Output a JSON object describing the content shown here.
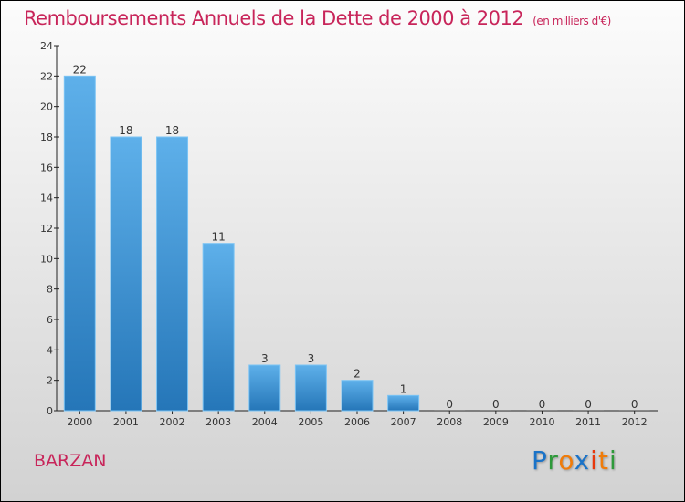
{
  "chart_data": {
    "type": "bar",
    "title": "Remboursements Annuels de la Dette de 2000 à 2012",
    "subtitle": "(en milliers d'€)",
    "categories": [
      "2000",
      "2001",
      "2002",
      "2003",
      "2004",
      "2005",
      "2006",
      "2007",
      "2008",
      "2009",
      "2010",
      "2011",
      "2012"
    ],
    "values": [
      22,
      18,
      18,
      11,
      3,
      3,
      2,
      1,
      0,
      0,
      0,
      0,
      0
    ],
    "ylim": [
      0,
      24
    ],
    "yticks": [
      0,
      2,
      4,
      6,
      8,
      10,
      12,
      14,
      16,
      18,
      20,
      22,
      24
    ],
    "xlabel": "",
    "ylabel": "",
    "bar_color": "#3f96dc"
  },
  "commune": "BARZAN",
  "logo": {
    "letters": [
      "P",
      "r",
      "o",
      "x",
      "i",
      "t",
      "i"
    ],
    "colors": [
      "#1a73c8",
      "#2e9a3a",
      "#f07c0a",
      "#1a73c8",
      "#e8380d",
      "#f07c0a",
      "#2e9a3a"
    ]
  }
}
